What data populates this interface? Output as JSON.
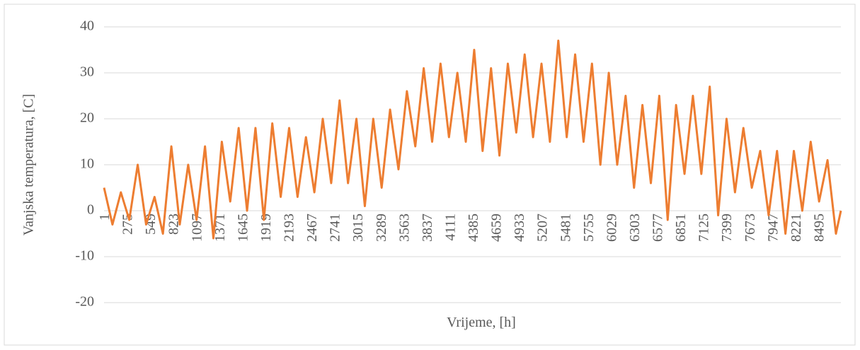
{
  "chart_data": {
    "type": "line",
    "xlabel": "Vrijeme, [h]",
    "ylabel": "Vanjska temperatura, [C]",
    "x": [
      1,
      101,
      201,
      301,
      401,
      501,
      601,
      701,
      801,
      901,
      1001,
      1101,
      1201,
      1301,
      1401,
      1501,
      1601,
      1701,
      1801,
      1901,
      2001,
      2101,
      2201,
      2301,
      2401,
      2501,
      2601,
      2701,
      2801,
      2901,
      3001,
      3101,
      3201,
      3301,
      3401,
      3501,
      3601,
      3701,
      3801,
      3901,
      4001,
      4101,
      4201,
      4301,
      4401,
      4501,
      4601,
      4701,
      4801,
      4901,
      5001,
      5101,
      5201,
      5301,
      5401,
      5501,
      5601,
      5701,
      5801,
      5901,
      6001,
      6101,
      6201,
      6301,
      6401,
      6501,
      6601,
      6701,
      6801,
      6901,
      7001,
      7101,
      7201,
      7301,
      7401,
      7501,
      7601,
      7701,
      7801,
      7901,
      8001,
      8101,
      8201,
      8301,
      8401,
      8501,
      8601,
      8701,
      8760
    ],
    "series": [
      {
        "color": "#ed7d31",
        "values": [
          5,
          -3,
          4,
          -2,
          10,
          -3,
          3,
          -5,
          14,
          -3,
          10,
          -2,
          14,
          -6,
          15,
          2,
          18,
          0,
          18,
          -2,
          19,
          3,
          18,
          3,
          16,
          4,
          20,
          6,
          24,
          6,
          20,
          1,
          20,
          5,
          22,
          9,
          26,
          14,
          31,
          15,
          32,
          16,
          30,
          15,
          35,
          13,
          31,
          12,
          32,
          17,
          34,
          16,
          32,
          15,
          37,
          16,
          34,
          15,
          32,
          10,
          30,
          10,
          25,
          5,
          23,
          6,
          25,
          -2,
          23,
          8,
          25,
          8,
          27,
          -1,
          20,
          4,
          18,
          5,
          13,
          -1,
          13,
          -5,
          13,
          0,
          15,
          2,
          11,
          -5,
          0
        ]
      }
    ],
    "xlim": [
      1,
      8760
    ],
    "xticks": [
      1,
      275,
      549,
      823,
      1097,
      1371,
      1645,
      1919,
      2193,
      2467,
      2741,
      3015,
      3289,
      3563,
      3837,
      4111,
      4385,
      4659,
      4933,
      5207,
      5481,
      5755,
      6029,
      6303,
      6577,
      6851,
      7125,
      7399,
      7673,
      7947,
      8221,
      8495
    ],
    "ylim": [
      -20,
      40
    ],
    "yticks": [
      -20,
      -10,
      0,
      10,
      20,
      30,
      40
    ],
    "grid": true
  }
}
